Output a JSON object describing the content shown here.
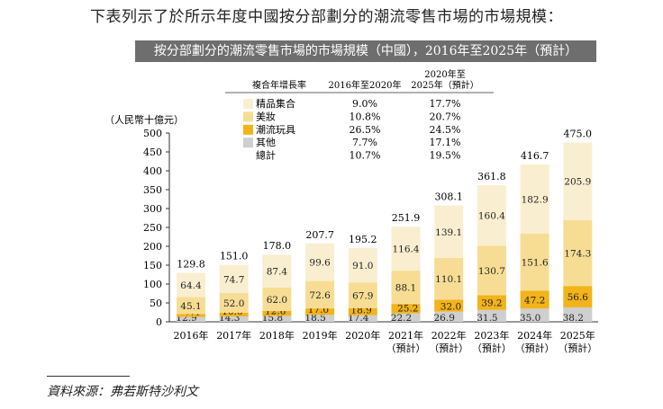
{
  "heading": "下表列示了於所示年度中國按分部劃分的潮流零售市場的市場規模：",
  "source_note": "資料來源：弗若斯特沙利文",
  "legend_table": {
    "header_label": "複合年增長率",
    "col1_header": "2016年至2020年",
    "col2_header_line1": "2020年至",
    "col2_header_line2": "2025年（預計）",
    "rows": [
      {
        "label": "精品集合",
        "cagr1": "9.0%",
        "cagr2": "17.7%",
        "color": "#faeed0"
      },
      {
        "label": "美妝",
        "cagr1": "10.8%",
        "cagr2": "20.7%",
        "color": "#f7dd94"
      },
      {
        "label": "潮流玩具",
        "cagr1": "26.5%",
        "cagr2": "24.5%",
        "color": "#f2b31b"
      },
      {
        "label": "其他",
        "cagr1": "7.7%",
        "cagr2": "17.1%",
        "color": "#cfcfcf"
      },
      {
        "label": "總計",
        "cagr1": "10.7%",
        "cagr2": "19.5%",
        "color": ""
      }
    ]
  },
  "chart_data": {
    "type": "bar",
    "stacked": true,
    "title": "按分部劃分的潮流零售市場的市場規模（中國），2016年至2025年（預計）",
    "ylabel": "（人民幣十億元）",
    "ylim": [
      0,
      500
    ],
    "yticks": [
      0,
      50,
      100,
      150,
      200,
      250,
      300,
      350,
      400,
      450,
      500
    ],
    "grid": false,
    "categories": [
      {
        "line1": "2016年",
        "line2": ""
      },
      {
        "line1": "2017年",
        "line2": ""
      },
      {
        "line1": "2018年",
        "line2": ""
      },
      {
        "line1": "2019年",
        "line2": ""
      },
      {
        "line1": "2020年",
        "line2": ""
      },
      {
        "line1": "2021年",
        "line2": "（預計）"
      },
      {
        "line1": "2022年",
        "line2": "（預計）"
      },
      {
        "line1": "2023年",
        "line2": "（預計）"
      },
      {
        "line1": "2024年",
        "line2": "（預計）"
      },
      {
        "line1": "2025年",
        "line2": "（預計）"
      }
    ],
    "series": [
      {
        "name": "其他",
        "color": "#cfcfcf",
        "values": [
          12.9,
          14.3,
          15.8,
          18.5,
          17.4,
          22.2,
          26.9,
          31.5,
          35.0,
          38.2
        ]
      },
      {
        "name": "潮流玩具",
        "color": "#f2b31b",
        "values": [
          7.4,
          10.0,
          12.8,
          17.0,
          18.9,
          25.2,
          32.0,
          39.2,
          47.2,
          56.6
        ]
      },
      {
        "name": "美妝",
        "color": "#f7dd94",
        "values": [
          45.1,
          52.0,
          62.0,
          72.6,
          67.9,
          88.1,
          110.1,
          130.7,
          151.6,
          174.3
        ]
      },
      {
        "name": "精品集合",
        "color": "#faeed0",
        "values": [
          64.4,
          74.7,
          87.4,
          99.6,
          91.0,
          116.4,
          139.1,
          160.4,
          182.9,
          205.9
        ]
      }
    ],
    "totals": [
      129.8,
      151.0,
      178.0,
      207.7,
      195.2,
      251.9,
      308.1,
      361.8,
      416.7,
      475.0
    ]
  }
}
